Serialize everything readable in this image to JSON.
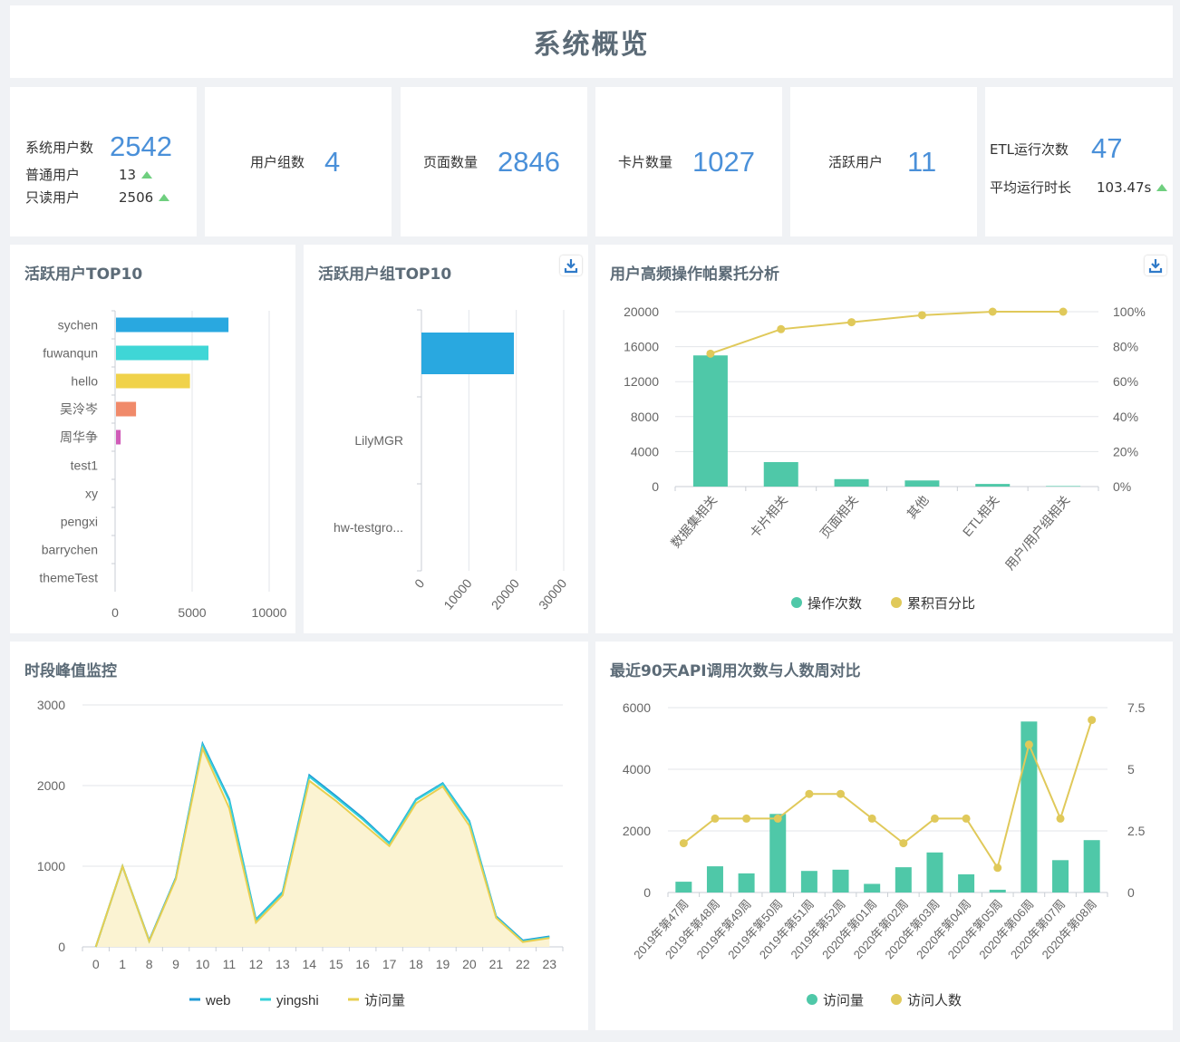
{
  "page_title": "系统概览",
  "stats": {
    "users": {
      "label": "系统用户数",
      "value": "2542",
      "sub": [
        {
          "label": "普通用户",
          "value": "13"
        },
        {
          "label": "只读用户",
          "value": "2506"
        }
      ]
    },
    "groups": {
      "label": "用户组数",
      "value": "4"
    },
    "pages": {
      "label": "页面数量",
      "value": "2846"
    },
    "cards": {
      "label": "卡片数量",
      "value": "1027"
    },
    "active": {
      "label": "活跃用户",
      "value": "11"
    },
    "etl": {
      "label": "ETL运行次数",
      "value": "47",
      "sub_label": "平均运行时长",
      "sub_value": "103.47s"
    }
  },
  "icons": {
    "download": "download-icon",
    "trend": "arrow-up-icon"
  },
  "colors": {
    "accent": "#4a90d9",
    "teal": "#4fc8a8",
    "yellow": "#e0c95a",
    "up": "#6fcf7f"
  },
  "chart_data": [
    {
      "id": "top_users",
      "type": "bar",
      "orientation": "horizontal",
      "title": "活跃用户TOP10",
      "categories": [
        "sychen",
        "fuwanqun",
        "hello",
        "吴泠岑",
        "周华争",
        "test1",
        "xy",
        "pengxi",
        "barrychen",
        "themeTest"
      ],
      "values": [
        7300,
        6000,
        4800,
        1300,
        300,
        0,
        0,
        0,
        0,
        0
      ],
      "colors": [
        "#29a8e0",
        "#3fd6d6",
        "#f0d24a",
        "#f08a6a",
        "#d05cb8",
        "#29a8e0",
        "#29a8e0",
        "#29a8e0",
        "#29a8e0",
        "#29a8e0"
      ],
      "xlim": [
        0,
        10000
      ],
      "xticks": [
        "0",
        "5000",
        "10000"
      ]
    },
    {
      "id": "top_groups",
      "type": "bar",
      "orientation": "horizontal",
      "title": "活跃用户组TOP10",
      "categories": [
        "",
        "LilyMGR",
        "hw-testgro..."
      ],
      "values": [
        19500,
        0,
        0
      ],
      "xlim": [
        0,
        30000
      ],
      "xticks": [
        "0",
        "10000",
        "20000",
        "30000"
      ]
    },
    {
      "id": "pareto",
      "type": "bar",
      "title": "用户高频操作帕累托分析",
      "categories": [
        "数据集相关",
        "卡片相关",
        "页面相关",
        "其他",
        "ETL相关",
        "用户/用户组相关"
      ],
      "series": [
        {
          "name": "操作次数",
          "type": "bar",
          "values": [
            15000,
            2800,
            850,
            700,
            300,
            60
          ]
        },
        {
          "name": "累积百分比",
          "type": "line",
          "values": [
            0.76,
            0.9,
            0.94,
            0.98,
            1.0,
            1.0
          ]
        }
      ],
      "ylim": [
        0,
        20000
      ],
      "yticks": [
        "0",
        "4000",
        "8000",
        "12000",
        "16000",
        "20000"
      ],
      "y2ticks": [
        "0%",
        "20%",
        "40%",
        "60%",
        "80%",
        "100%"
      ]
    },
    {
      "id": "hourly",
      "type": "area",
      "title": "时段峰值监控",
      "categories": [
        "0",
        "1",
        "8",
        "9",
        "10",
        "11",
        "12",
        "13",
        "14",
        "15",
        "16",
        "17",
        "18",
        "19",
        "20",
        "21",
        "22",
        "23"
      ],
      "series": [
        {
          "name": "web",
          "values": [
            0,
            1000,
            80,
            860,
            2520,
            1830,
            340,
            680,
            2130,
            1870,
            1600,
            1290,
            1830,
            2030,
            1560,
            380,
            80,
            130
          ]
        },
        {
          "name": "yingshi",
          "values": [
            0,
            1000,
            70,
            850,
            2500,
            1810,
            330,
            670,
            2110,
            1850,
            1580,
            1280,
            1820,
            2020,
            1550,
            370,
            70,
            120
          ]
        },
        {
          "name": "访问量",
          "values": [
            0,
            1000,
            70,
            840,
            2460,
            1720,
            300,
            640,
            2060,
            1810,
            1530,
            1250,
            1780,
            1990,
            1500,
            360,
            60,
            110
          ]
        }
      ],
      "ylim": [
        0,
        3000
      ],
      "yticks": [
        "0",
        "1000",
        "2000",
        "3000"
      ]
    },
    {
      "id": "api_weekly",
      "type": "bar",
      "title": "最近90天API调用次数与人数周对比",
      "categories": [
        "2019年第47周",
        "2019年第48周",
        "2019年第49周",
        "2019年第50周",
        "2019年第51周",
        "2019年第52周",
        "2020年第01周",
        "2020年第02周",
        "2020年第03周",
        "2020年第04周",
        "2020年第05周",
        "2020年第06周",
        "2020年第07周",
        "2020年第08周"
      ],
      "series": [
        {
          "name": "访问量",
          "type": "bar",
          "values": [
            350,
            850,
            620,
            2550,
            700,
            740,
            280,
            820,
            1300,
            590,
            90,
            5550,
            1050,
            1700
          ]
        },
        {
          "name": "访问人数",
          "type": "line",
          "values": [
            2,
            3,
            3,
            3,
            4,
            4,
            3,
            2,
            3,
            3,
            1,
            6,
            3,
            7
          ]
        }
      ],
      "ylim": [
        0,
        6000
      ],
      "yticks": [
        "0",
        "2000",
        "4000",
        "6000"
      ],
      "y2ticks": [
        "0",
        "2.5",
        "5",
        "7.5"
      ]
    }
  ]
}
